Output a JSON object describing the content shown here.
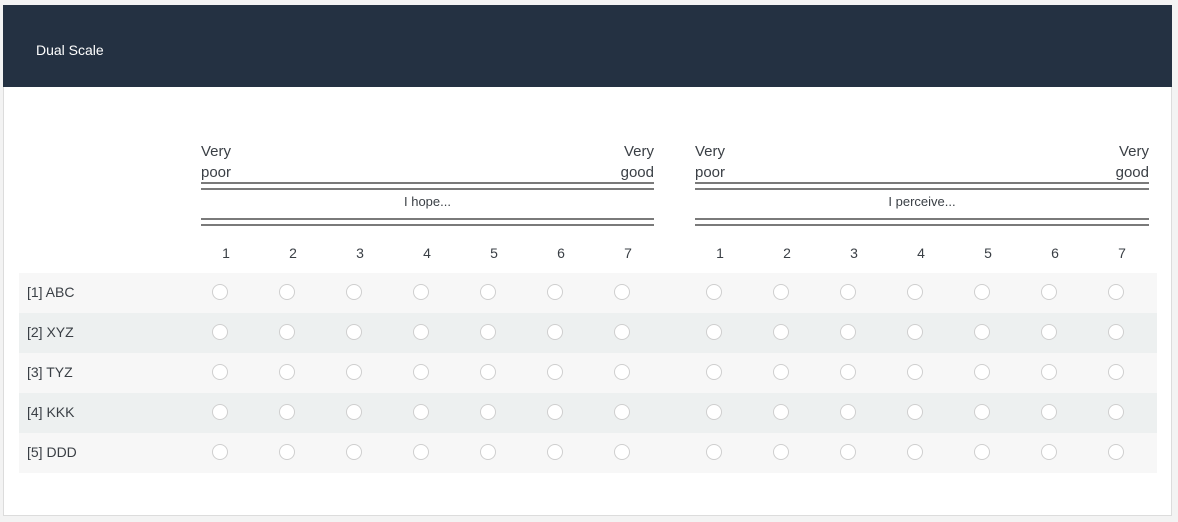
{
  "title": "Dual Scale",
  "scales": [
    {
      "header": "I hope...",
      "min_label_1": "Very",
      "min_label_2": "poor",
      "max_label_1": "Very",
      "max_label_2": "good",
      "columns": [
        "1",
        "2",
        "3",
        "4",
        "5",
        "6",
        "7"
      ]
    },
    {
      "header": "I perceive...",
      "min_label_1": "Very",
      "min_label_2": "poor",
      "max_label_1": "Very",
      "max_label_2": "good",
      "columns": [
        "1",
        "2",
        "3",
        "4",
        "5",
        "6",
        "7"
      ]
    }
  ],
  "rows": [
    {
      "label": "[1] ABC"
    },
    {
      "label": "[2] XYZ"
    },
    {
      "label": "[3] TYZ"
    },
    {
      "label": "[4] KKK"
    },
    {
      "label": "[5] DDD"
    }
  ]
}
